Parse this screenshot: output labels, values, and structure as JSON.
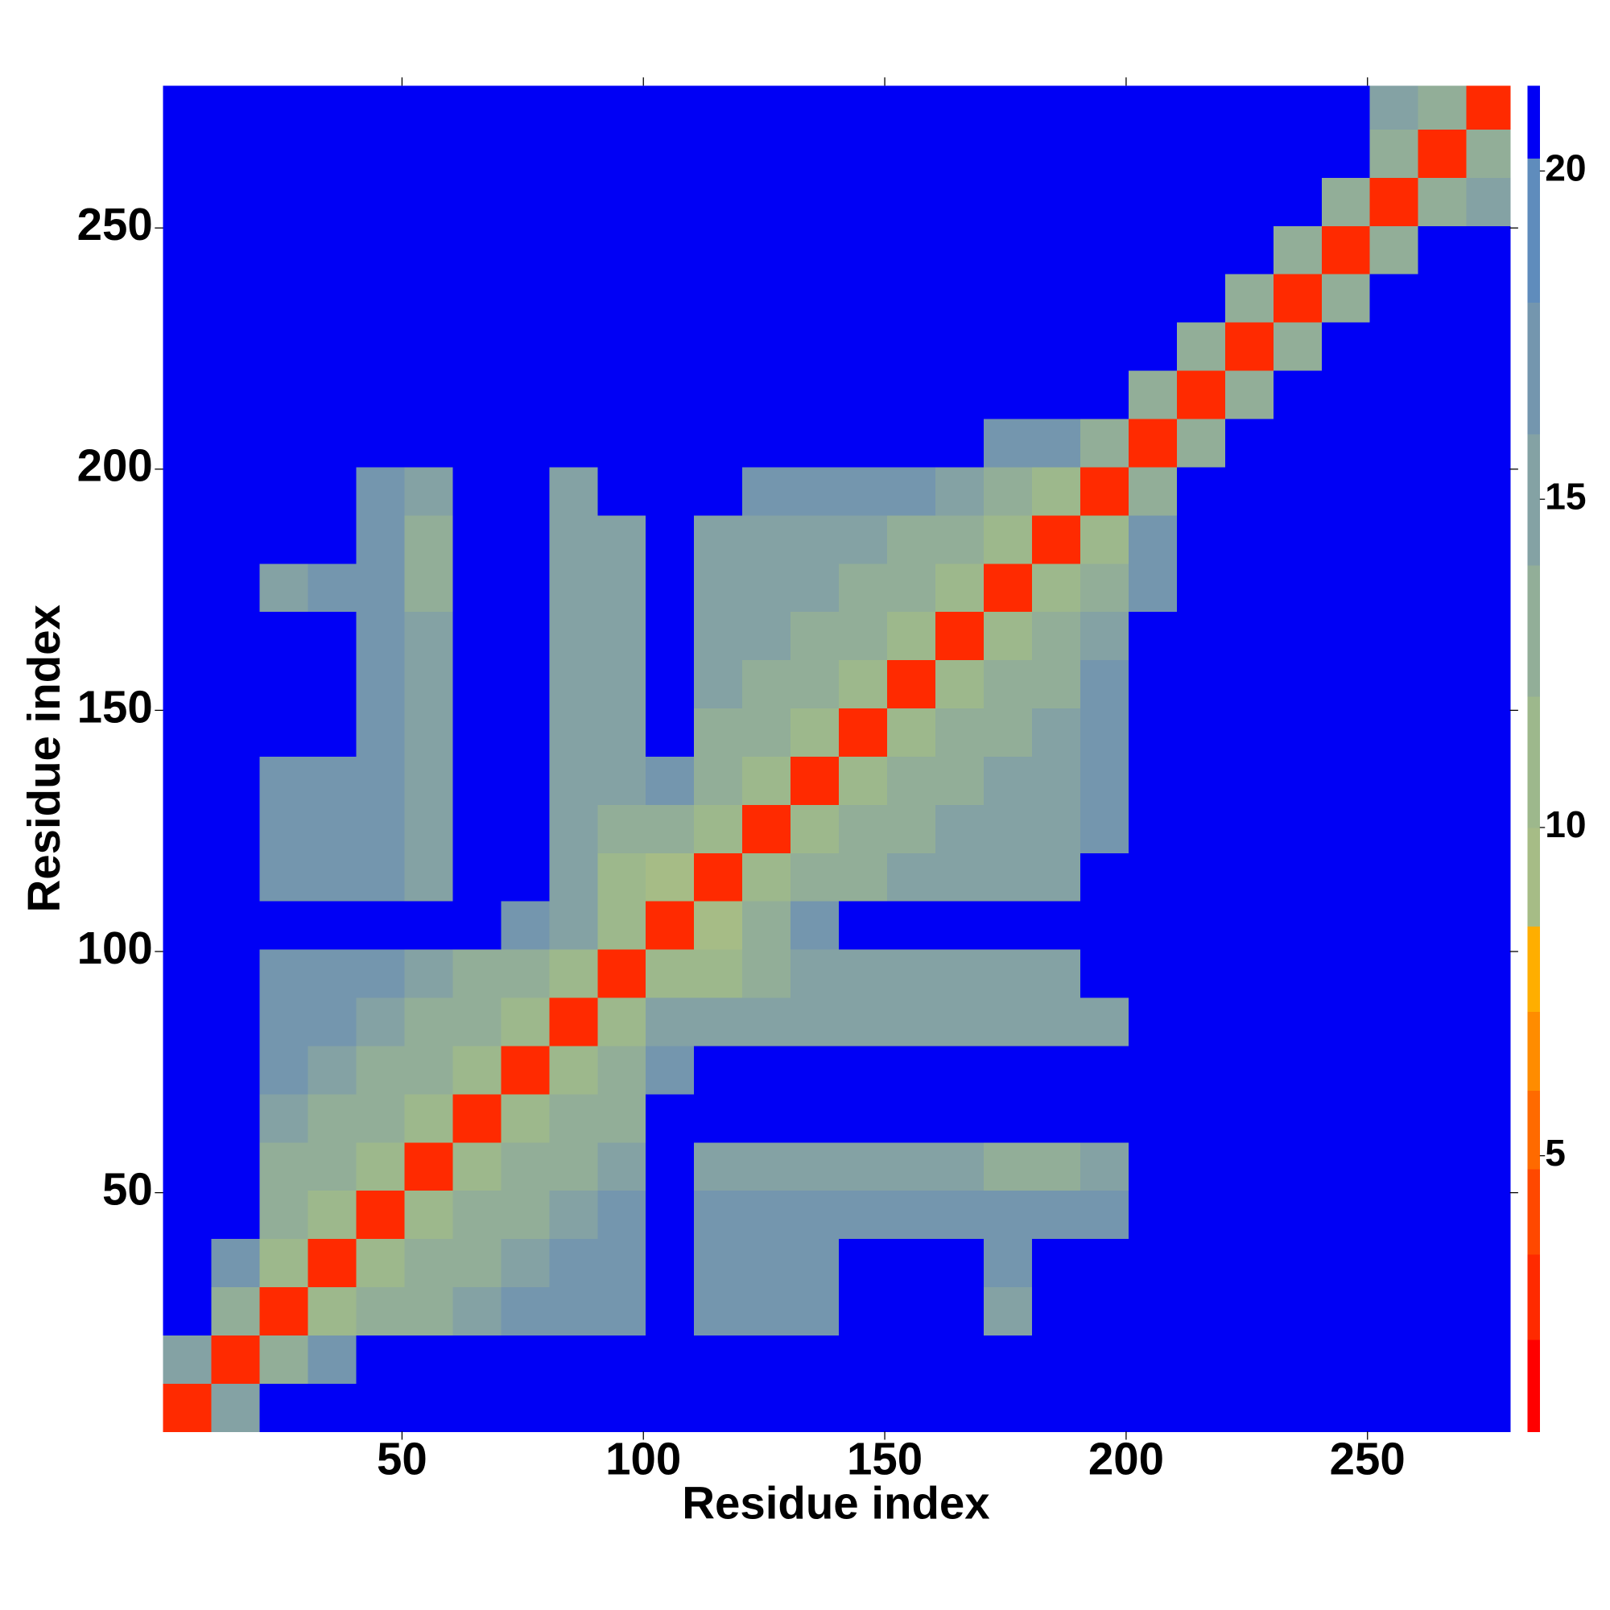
{
  "chart_data": {
    "type": "heatmap",
    "xlabel": "Residue index",
    "ylabel": "Residue index",
    "x_edges": [
      0.5,
      10.5,
      20.5,
      30.5,
      40.5,
      50.5,
      60.5,
      70.5,
      80.5,
      90.5,
      100.5,
      110.5,
      120.5,
      130.5,
      140.5,
      150.5,
      160.5,
      170.5,
      180.5,
      190.5,
      200.5,
      210.5,
      220.5,
      230.5,
      240.5,
      250.5,
      260.5,
      270.5,
      279.5
    ],
    "y_edges": [
      0.5,
      10.5,
      20.5,
      30.5,
      40.5,
      50.5,
      60.5,
      70.5,
      80.5,
      90.5,
      100.5,
      110.5,
      120.5,
      130.5,
      140.5,
      150.5,
      160.5,
      170.5,
      180.5,
      190.5,
      200.5,
      210.5,
      220.5,
      230.5,
      240.5,
      250.5,
      260.5,
      270.5,
      279.5
    ],
    "xlim": [
      0.5,
      279.5
    ],
    "ylim": [
      0.5,
      279.5
    ],
    "xticks": [
      50,
      100,
      150,
      200,
      250
    ],
    "yticks": [
      50,
      100,
      150,
      200,
      250
    ],
    "values": [
      [
        3,
        14,
        21,
        21,
        21,
        21,
        21,
        21,
        21,
        21,
        21,
        21,
        21,
        21,
        21,
        21,
        21,
        21,
        21,
        21,
        21,
        21,
        21,
        21,
        21,
        21,
        21,
        21
      ],
      [
        14,
        3,
        12,
        16,
        21,
        21,
        21,
        21,
        21,
        21,
        21,
        21,
        21,
        21,
        21,
        21,
        21,
        21,
        21,
        21,
        21,
        21,
        21,
        21,
        21,
        21,
        21,
        21
      ],
      [
        21,
        12,
        3,
        10,
        12,
        13,
        14,
        16,
        16,
        16,
        21,
        16,
        16,
        16,
        21,
        21,
        21,
        14,
        21,
        21,
        21,
        21,
        21,
        21,
        21,
        21,
        21,
        21
      ],
      [
        21,
        16,
        10,
        3,
        10,
        12,
        13,
        14,
        16,
        16,
        21,
        16,
        16,
        16,
        21,
        21,
        21,
        16,
        21,
        21,
        21,
        21,
        21,
        21,
        21,
        21,
        21,
        21
      ],
      [
        21,
        21,
        12,
        10,
        3,
        10,
        12,
        13,
        14,
        16,
        21,
        16,
        16,
        16,
        16,
        16,
        16,
        16,
        16,
        16,
        21,
        21,
        21,
        21,
        21,
        21,
        21,
        21
      ],
      [
        21,
        21,
        13,
        12,
        10,
        3,
        10,
        12,
        13,
        14,
        21,
        15,
        15,
        15,
        15,
        15,
        15,
        13,
        13,
        15,
        21,
        21,
        21,
        21,
        21,
        21,
        21,
        21
      ],
      [
        21,
        21,
        14,
        13,
        12,
        10,
        3,
        10,
        12,
        13,
        21,
        21,
        21,
        21,
        21,
        21,
        21,
        21,
        21,
        21,
        21,
        21,
        21,
        21,
        21,
        21,
        21,
        21
      ],
      [
        21,
        21,
        16,
        14,
        13,
        12,
        10,
        3,
        10,
        12,
        16,
        21,
        21,
        21,
        21,
        21,
        21,
        21,
        21,
        21,
        21,
        21,
        21,
        21,
        21,
        21,
        21,
        21
      ],
      [
        21,
        21,
        16,
        16,
        14,
        13,
        12,
        10,
        3,
        10,
        14,
        15,
        15,
        15,
        15,
        15,
        15,
        15,
        15,
        15,
        21,
        21,
        21,
        21,
        21,
        21,
        21,
        21
      ],
      [
        21,
        21,
        16,
        16,
        16,
        14,
        13,
        12,
        10,
        3,
        10,
        11,
        12,
        14,
        14,
        14,
        15,
        15,
        15,
        21,
        21,
        21,
        21,
        21,
        21,
        21,
        21,
        21
      ],
      [
        21,
        21,
        21,
        21,
        21,
        21,
        21,
        16,
        14,
        10,
        3,
        9,
        13,
        16,
        21,
        21,
        21,
        21,
        21,
        21,
        21,
        21,
        21,
        21,
        21,
        21,
        21,
        21
      ],
      [
        21,
        21,
        16,
        16,
        16,
        15,
        21,
        21,
        15,
        11,
        9,
        3,
        10,
        12,
        13,
        14,
        15,
        15,
        15,
        21,
        21,
        21,
        21,
        21,
        21,
        21,
        21,
        21
      ],
      [
        21,
        21,
        16,
        16,
        16,
        15,
        21,
        21,
        15,
        12,
        13,
        10,
        3,
        10,
        12,
        13,
        14,
        15,
        15,
        16,
        21,
        21,
        21,
        21,
        21,
        21,
        21,
        21
      ],
      [
        21,
        21,
        16,
        16,
        16,
        15,
        21,
        21,
        15,
        14,
        16,
        12,
        10,
        3,
        10,
        12,
        13,
        14,
        15,
        16,
        21,
        21,
        21,
        21,
        21,
        21,
        21,
        21
      ],
      [
        21,
        21,
        21,
        21,
        16,
        15,
        21,
        21,
        15,
        14,
        21,
        13,
        12,
        10,
        3,
        10,
        12,
        13,
        14,
        16,
        21,
        21,
        21,
        21,
        21,
        21,
        21,
        21
      ],
      [
        21,
        21,
        21,
        21,
        16,
        15,
        21,
        21,
        15,
        14,
        21,
        14,
        13,
        12,
        10,
        3,
        10,
        12,
        13,
        16,
        21,
        21,
        21,
        21,
        21,
        21,
        21,
        21
      ],
      [
        21,
        21,
        21,
        21,
        16,
        15,
        21,
        21,
        15,
        15,
        21,
        15,
        14,
        13,
        12,
        10,
        3,
        10,
        12,
        15,
        21,
        21,
        21,
        21,
        21,
        21,
        21,
        21
      ],
      [
        21,
        21,
        14,
        16,
        16,
        13,
        21,
        21,
        15,
        15,
        21,
        15,
        15,
        14,
        13,
        12,
        10,
        3,
        10,
        12,
        16,
        21,
        21,
        21,
        21,
        21,
        21,
        21
      ],
      [
        21,
        21,
        21,
        21,
        16,
        13,
        21,
        21,
        15,
        15,
        21,
        15,
        15,
        15,
        14,
        13,
        12,
        10,
        3,
        10,
        16,
        21,
        21,
        21,
        21,
        21,
        21,
        21
      ],
      [
        21,
        21,
        21,
        21,
        16,
        15,
        21,
        21,
        15,
        21,
        21,
        21,
        16,
        16,
        16,
        16,
        15,
        12,
        10,
        3,
        12,
        21,
        21,
        21,
        21,
        21,
        21,
        21
      ],
      [
        21,
        21,
        21,
        21,
        21,
        21,
        21,
        21,
        21,
        21,
        21,
        21,
        21,
        21,
        21,
        21,
        21,
        16,
        16,
        12,
        3,
        13,
        21,
        21,
        21,
        21,
        21,
        21
      ],
      [
        21,
        21,
        21,
        21,
        21,
        21,
        21,
        21,
        21,
        21,
        21,
        21,
        21,
        21,
        21,
        21,
        21,
        21,
        21,
        21,
        13,
        3,
        13,
        21,
        21,
        21,
        21,
        21
      ],
      [
        21,
        21,
        21,
        21,
        21,
        21,
        21,
        21,
        21,
        21,
        21,
        21,
        21,
        21,
        21,
        21,
        21,
        21,
        21,
        21,
        21,
        13,
        3,
        13,
        21,
        21,
        21,
        21
      ],
      [
        21,
        21,
        21,
        21,
        21,
        21,
        21,
        21,
        21,
        21,
        21,
        21,
        21,
        21,
        21,
        21,
        21,
        21,
        21,
        21,
        21,
        21,
        13,
        3,
        13,
        21,
        21,
        21
      ],
      [
        21,
        21,
        21,
        21,
        21,
        21,
        21,
        21,
        21,
        21,
        21,
        21,
        21,
        21,
        21,
        21,
        21,
        21,
        21,
        21,
        21,
        21,
        21,
        13,
        3,
        13,
        21,
        21
      ],
      [
        21,
        21,
        21,
        21,
        21,
        21,
        21,
        21,
        21,
        21,
        21,
        21,
        21,
        21,
        21,
        21,
        21,
        21,
        21,
        21,
        21,
        21,
        21,
        21,
        13,
        3,
        12,
        15
      ],
      [
        21,
        21,
        21,
        21,
        21,
        21,
        21,
        21,
        21,
        21,
        21,
        21,
        21,
        21,
        21,
        21,
        21,
        21,
        21,
        21,
        21,
        21,
        21,
        21,
        21,
        12,
        3,
        12
      ],
      [
        21,
        21,
        21,
        21,
        21,
        21,
        21,
        21,
        21,
        21,
        21,
        21,
        21,
        21,
        21,
        21,
        21,
        21,
        21,
        21,
        21,
        21,
        21,
        21,
        21,
        15,
        12,
        3
      ]
    ],
    "colorbar": {
      "clim": [
        0.8,
        21.3
      ],
      "ticks": [
        5,
        10,
        15,
        20
      ],
      "levels": [
        0.8,
        2.2,
        3.5,
        4.8,
        6,
        7.2,
        8.5,
        10,
        12,
        14,
        16,
        18,
        20.2,
        21.3
      ],
      "colors": [
        "#ff0000",
        "#ff2a00",
        "#ff4800",
        "#ff6a00",
        "#ff8c00",
        "#ffae00",
        "#a6bc86",
        "#9db88c",
        "#92ae98",
        "#84a2a4",
        "#7496ae",
        "#5f8cbc",
        "#0000f5"
      ]
    }
  }
}
